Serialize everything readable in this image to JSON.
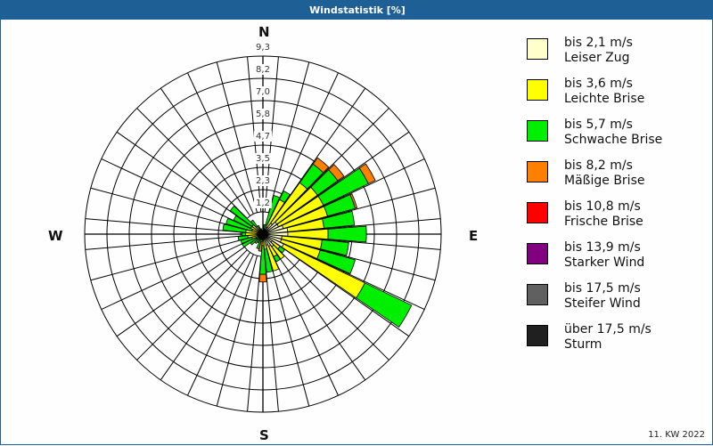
{
  "window": {
    "title": "Windstatistik [%]"
  },
  "footer": {
    "week": "11. KW 2022"
  },
  "cardinals": {
    "n": "N",
    "e": "E",
    "s": "S",
    "w": "W"
  },
  "legend": [
    {
      "speed": "bis 2,1 m/s",
      "name": "Leiser Zug",
      "color": "#ffffcc"
    },
    {
      "speed": "bis 3,6 m/s",
      "name": "Leichte Brise",
      "color": "#ffff00"
    },
    {
      "speed": "bis 5,7 m/s",
      "name": "Schwache Brise",
      "color": "#00ee00"
    },
    {
      "speed": "bis 8,2 m/s",
      "name": "Mäßige Brise",
      "color": "#ff7f00"
    },
    {
      "speed": "bis 10,8 m/s",
      "name": "Frische Brise",
      "color": "#ff0000"
    },
    {
      "speed": "bis 13,9 m/s",
      "name": "Starker Wind",
      "color": "#800080"
    },
    {
      "speed": "bis 17,5 m/s",
      "name": "Steifer Wind",
      "color": "#606060"
    },
    {
      "speed": "über 17,5 m/s",
      "name": "Sturm",
      "color": "#202020"
    }
  ],
  "chart_data": {
    "type": "polar-bar (wind rose)",
    "title": "Windstatistik [%]",
    "unit": "%",
    "rings": [
      1.2,
      2.3,
      3.5,
      4.7,
      5.8,
      7.0,
      8.2,
      9.3
    ],
    "rmax": 9.3,
    "sector_width_deg": 10,
    "series_names": [
      "bis 2,1 m/s",
      "bis 3,6 m/s",
      "bis 5,7 m/s",
      "bis 8,2 m/s"
    ],
    "series_colors": [
      "#ffffcc",
      "#ffff00",
      "#00ee00",
      "#ff7f00"
    ],
    "sectors": [
      {
        "dir": 0,
        "values": [
          0.1,
          0.1,
          0.0,
          0.0
        ]
      },
      {
        "dir": 10,
        "values": [
          0.1,
          0.1,
          0.3,
          0.0
        ]
      },
      {
        "dir": 20,
        "values": [
          0.2,
          0.3,
          1.6,
          0.0
        ]
      },
      {
        "dir": 30,
        "values": [
          0.4,
          1.6,
          0.5,
          0.0
        ]
      },
      {
        "dir": 40,
        "values": [
          0.7,
          2.6,
          1.2,
          0.4
        ]
      },
      {
        "dir": 50,
        "values": [
          0.9,
          2.6,
          1.3,
          0.4
        ]
      },
      {
        "dir": 60,
        "values": [
          0.9,
          2.6,
          2.6,
          0.4
        ]
      },
      {
        "dir": 70,
        "values": [
          1.1,
          2.4,
          1.5,
          0.1
        ]
      },
      {
        "dir": 80,
        "values": [
          1.3,
          1.9,
          1.6,
          0.0
        ]
      },
      {
        "dir": 90,
        "values": [
          1.3,
          2.1,
          2.0,
          0.0
        ]
      },
      {
        "dir": 100,
        "values": [
          1.0,
          2.1,
          1.4,
          0.0
        ]
      },
      {
        "dir": 110,
        "values": [
          1.0,
          2.1,
          1.9,
          0.0
        ]
      },
      {
        "dir": 120,
        "values": [
          1.2,
          4.7,
          2.7,
          0.0
        ]
      },
      {
        "dir": 130,
        "values": [
          0.6,
          0.5,
          0.3,
          0.0
        ]
      },
      {
        "dir": 140,
        "values": [
          0.8,
          0.8,
          0.0,
          0.0
        ]
      },
      {
        "dir": 150,
        "values": [
          0.7,
          0.6,
          0.3,
          0.0
        ]
      },
      {
        "dir": 160,
        "values": [
          0.6,
          1.4,
          0.0,
          0.0
        ]
      },
      {
        "dir": 170,
        "values": [
          0.3,
          0.5,
          1.2,
          0.0
        ]
      },
      {
        "dir": 180,
        "values": [
          0.3,
          0.3,
          1.5,
          0.4
        ]
      },
      {
        "dir": 190,
        "values": [
          0.2,
          0.2,
          0.0,
          0.5
        ]
      },
      {
        "dir": 200,
        "values": [
          0.1,
          0.2,
          0.5,
          0.0
        ]
      },
      {
        "dir": 210,
        "values": [
          0.1,
          0.1,
          0.3,
          0.0
        ]
      },
      {
        "dir": 220,
        "values": [
          0.1,
          0.2,
          0.3,
          0.0
        ]
      },
      {
        "dir": 230,
        "values": [
          0.1,
          0.3,
          0.4,
          0.0
        ]
      },
      {
        "dir": 240,
        "values": [
          0.1,
          0.3,
          0.8,
          0.0
        ]
      },
      {
        "dir": 250,
        "values": [
          0.2,
          0.4,
          0.6,
          0.0
        ]
      },
      {
        "dir": 260,
        "values": [
          0.2,
          0.6,
          0.5,
          0.0
        ]
      },
      {
        "dir": 270,
        "values": [
          0.3,
          0.6,
          0.2,
          0.0
        ]
      },
      {
        "dir": 280,
        "values": [
          0.3,
          0.6,
          1.2,
          0.0
        ]
      },
      {
        "dir": 290,
        "values": [
          0.2,
          0.4,
          1.4,
          0.0
        ]
      },
      {
        "dir": 300,
        "values": [
          0.2,
          0.5,
          1.0,
          0.0
        ]
      },
      {
        "dir": 310,
        "values": [
          0.2,
          0.5,
          1.4,
          0.0
        ]
      },
      {
        "dir": 320,
        "values": [
          0.2,
          0.3,
          0.4,
          0.0
        ]
      },
      {
        "dir": 330,
        "values": [
          0.1,
          0.2,
          0.2,
          0.0
        ]
      },
      {
        "dir": 340,
        "values": [
          0.1,
          0.1,
          0.1,
          0.0
        ]
      },
      {
        "dir": 350,
        "values": [
          0.1,
          0.1,
          0.0,
          0.0
        ]
      }
    ]
  }
}
